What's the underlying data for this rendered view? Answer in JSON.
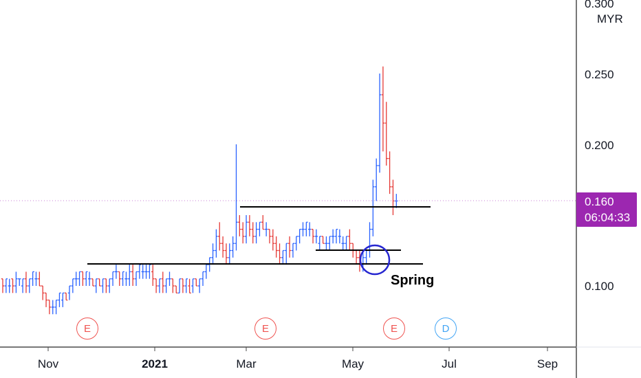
{
  "currency": "MYR",
  "price_tag": {
    "price": "0.160",
    "countdown": "06:04:33"
  },
  "annotation": "Spring",
  "events": [
    "E",
    "E",
    "E",
    "D"
  ],
  "colors": {
    "up": "#2962ff",
    "down": "#e53935",
    "axis": "#4a4a4a",
    "price_tag_bg": "#9c27b0",
    "price_line": "#c77dd6",
    "event_earnings": "#ef5350",
    "event_dividend": "#42a5f5",
    "spring_circle": "#2626d0",
    "support_lines": "#000000"
  },
  "chart_data": {
    "type": "bar",
    "title": "",
    "xlabel": "",
    "ylabel": "MYR",
    "y_ticks": [
      "0.100",
      "0.200",
      "0.250",
      "0.300"
    ],
    "x_ticks": [
      "Nov",
      "2021",
      "Mar",
      "May",
      "Jul",
      "Sep"
    ],
    "ylim": [
      0.06,
      0.3
    ],
    "last_price": 0.16,
    "grid": false,
    "start": "2020-10-01",
    "ohlc": [
      [
        0.105,
        0.105,
        0.095,
        0.1
      ],
      [
        0.1,
        0.105,
        0.095,
        0.105
      ],
      [
        0.1,
        0.105,
        0.095,
        0.1
      ],
      [
        0.105,
        0.105,
        0.095,
        0.1
      ],
      [
        0.1,
        0.11,
        0.095,
        0.105
      ],
      [
        0.105,
        0.105,
        0.1,
        0.105
      ],
      [
        0.1,
        0.105,
        0.095,
        0.105
      ],
      [
        0.105,
        0.11,
        0.095,
        0.1
      ],
      [
        0.1,
        0.105,
        0.095,
        0.105
      ],
      [
        0.105,
        0.11,
        0.1,
        0.11
      ],
      [
        0.105,
        0.11,
        0.1,
        0.105
      ],
      [
        0.105,
        0.11,
        0.1,
        0.1
      ],
      [
        0.1,
        0.1,
        0.09,
        0.095
      ],
      [
        0.095,
        0.095,
        0.085,
        0.09
      ],
      [
        0.09,
        0.09,
        0.08,
        0.085
      ],
      [
        0.085,
        0.09,
        0.08,
        0.085
      ],
      [
        0.085,
        0.09,
        0.08,
        0.09
      ],
      [
        0.09,
        0.095,
        0.085,
        0.095
      ],
      [
        0.09,
        0.095,
        0.085,
        0.095
      ],
      [
        0.095,
        0.095,
        0.09,
        0.09
      ],
      [
        0.095,
        0.1,
        0.09,
        0.1
      ],
      [
        0.1,
        0.105,
        0.095,
        0.105
      ],
      [
        0.105,
        0.11,
        0.1,
        0.105
      ],
      [
        0.105,
        0.11,
        0.1,
        0.11
      ],
      [
        0.11,
        0.11,
        0.1,
        0.105
      ],
      [
        0.105,
        0.11,
        0.1,
        0.11
      ],
      [
        0.105,
        0.11,
        0.1,
        0.105
      ],
      [
        0.105,
        0.105,
        0.1,
        0.1
      ],
      [
        0.1,
        0.105,
        0.095,
        0.105
      ],
      [
        0.105,
        0.105,
        0.1,
        0.1
      ],
      [
        0.1,
        0.105,
        0.095,
        0.105
      ],
      [
        0.105,
        0.105,
        0.095,
        0.1
      ],
      [
        0.1,
        0.105,
        0.095,
        0.105
      ],
      [
        0.105,
        0.11,
        0.1,
        0.11
      ],
      [
        0.11,
        0.115,
        0.105,
        0.11
      ],
      [
        0.11,
        0.11,
        0.1,
        0.105
      ],
      [
        0.105,
        0.11,
        0.1,
        0.11
      ],
      [
        0.105,
        0.11,
        0.1,
        0.105
      ],
      [
        0.105,
        0.115,
        0.1,
        0.11
      ],
      [
        0.11,
        0.115,
        0.1,
        0.105
      ],
      [
        0.105,
        0.11,
        0.1,
        0.11
      ],
      [
        0.11,
        0.115,
        0.105,
        0.115
      ],
      [
        0.11,
        0.115,
        0.105,
        0.11
      ],
      [
        0.11,
        0.115,
        0.105,
        0.11
      ],
      [
        0.11,
        0.115,
        0.105,
        0.115
      ],
      [
        0.11,
        0.115,
        0.1,
        0.105
      ],
      [
        0.105,
        0.105,
        0.095,
        0.1
      ],
      [
        0.1,
        0.105,
        0.095,
        0.105
      ],
      [
        0.105,
        0.11,
        0.095,
        0.1
      ],
      [
        0.1,
        0.105,
        0.095,
        0.105
      ],
      [
        0.105,
        0.11,
        0.1,
        0.105
      ],
      [
        0.105,
        0.105,
        0.095,
        0.1
      ],
      [
        0.1,
        0.1,
        0.095,
        0.095
      ],
      [
        0.095,
        0.105,
        0.095,
        0.105
      ],
      [
        0.105,
        0.105,
        0.095,
        0.1
      ],
      [
        0.1,
        0.105,
        0.095,
        0.105
      ],
      [
        0.1,
        0.105,
        0.095,
        0.095
      ],
      [
        0.1,
        0.105,
        0.095,
        0.105
      ],
      [
        0.105,
        0.105,
        0.1,
        0.1
      ],
      [
        0.1,
        0.105,
        0.095,
        0.105
      ],
      [
        0.105,
        0.11,
        0.1,
        0.11
      ],
      [
        0.11,
        0.115,
        0.105,
        0.115
      ],
      [
        0.115,
        0.12,
        0.11,
        0.12
      ],
      [
        0.12,
        0.13,
        0.115,
        0.125
      ],
      [
        0.125,
        0.14,
        0.12,
        0.135
      ],
      [
        0.135,
        0.145,
        0.125,
        0.13
      ],
      [
        0.13,
        0.135,
        0.12,
        0.125
      ],
      [
        0.125,
        0.13,
        0.115,
        0.12
      ],
      [
        0.12,
        0.13,
        0.115,
        0.125
      ],
      [
        0.125,
        0.135,
        0.12,
        0.13
      ],
      [
        0.13,
        0.2,
        0.125,
        0.145
      ],
      [
        0.145,
        0.15,
        0.135,
        0.14
      ],
      [
        0.14,
        0.145,
        0.13,
        0.135
      ],
      [
        0.135,
        0.15,
        0.13,
        0.145
      ],
      [
        0.145,
        0.15,
        0.135,
        0.14
      ],
      [
        0.14,
        0.145,
        0.13,
        0.135
      ],
      [
        0.135,
        0.145,
        0.13,
        0.14
      ],
      [
        0.14,
        0.145,
        0.135,
        0.145
      ],
      [
        0.145,
        0.15,
        0.14,
        0.14
      ],
      [
        0.14,
        0.145,
        0.135,
        0.14
      ],
      [
        0.14,
        0.14,
        0.13,
        0.135
      ],
      [
        0.135,
        0.14,
        0.125,
        0.13
      ],
      [
        0.13,
        0.135,
        0.12,
        0.125
      ],
      [
        0.125,
        0.13,
        0.115,
        0.12
      ],
      [
        0.12,
        0.125,
        0.115,
        0.125
      ],
      [
        0.125,
        0.13,
        0.115,
        0.13
      ],
      [
        0.13,
        0.135,
        0.12,
        0.125
      ],
      [
        0.125,
        0.13,
        0.12,
        0.13
      ],
      [
        0.13,
        0.135,
        0.125,
        0.135
      ],
      [
        0.135,
        0.14,
        0.13,
        0.14
      ],
      [
        0.14,
        0.145,
        0.135,
        0.14
      ],
      [
        0.14,
        0.145,
        0.135,
        0.145
      ],
      [
        0.14,
        0.145,
        0.135,
        0.14
      ],
      [
        0.14,
        0.14,
        0.13,
        0.135
      ],
      [
        0.135,
        0.14,
        0.13,
        0.135
      ],
      [
        0.13,
        0.135,
        0.125,
        0.135
      ],
      [
        0.135,
        0.135,
        0.13,
        0.13
      ],
      [
        0.13,
        0.135,
        0.125,
        0.13
      ],
      [
        0.13,
        0.135,
        0.125,
        0.135
      ],
      [
        0.135,
        0.14,
        0.13,
        0.135
      ],
      [
        0.135,
        0.14,
        0.13,
        0.14
      ],
      [
        0.135,
        0.14,
        0.13,
        0.135
      ],
      [
        0.13,
        0.135,
        0.125,
        0.13
      ],
      [
        0.13,
        0.135,
        0.125,
        0.135
      ],
      [
        0.135,
        0.14,
        0.125,
        0.13
      ],
      [
        0.13,
        0.13,
        0.12,
        0.125
      ],
      [
        0.125,
        0.125,
        0.115,
        0.12
      ],
      [
        0.12,
        0.125,
        0.11,
        0.115
      ],
      [
        0.115,
        0.125,
        0.11,
        0.12
      ],
      [
        0.12,
        0.125,
        0.115,
        0.125
      ],
      [
        0.125,
        0.145,
        0.12,
        0.14
      ],
      [
        0.14,
        0.175,
        0.135,
        0.17
      ],
      [
        0.17,
        0.19,
        0.16,
        0.185
      ],
      [
        0.185,
        0.25,
        0.18,
        0.235
      ],
      [
        0.235,
        0.255,
        0.195,
        0.215
      ],
      [
        0.215,
        0.23,
        0.185,
        0.19
      ],
      [
        0.19,
        0.195,
        0.165,
        0.17
      ],
      [
        0.17,
        0.175,
        0.15,
        0.16
      ],
      [
        0.16,
        0.165,
        0.155,
        0.16
      ]
    ]
  }
}
